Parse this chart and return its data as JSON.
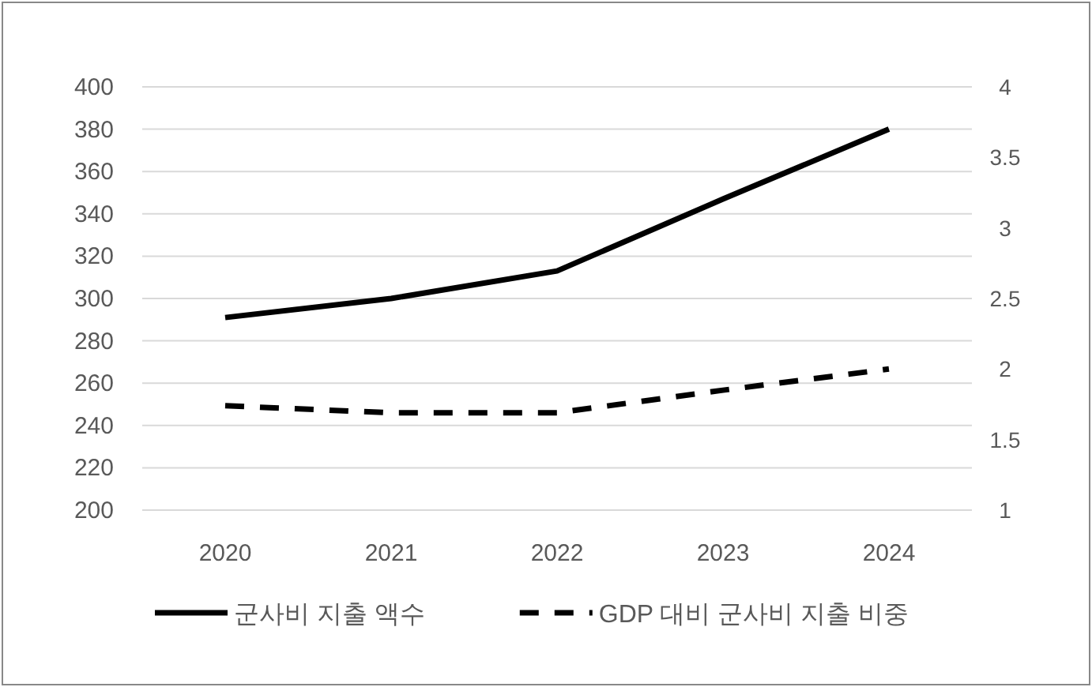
{
  "chart_data": {
    "type": "line",
    "categories": [
      "2020",
      "2021",
      "2022",
      "2023",
      "2024"
    ],
    "series": [
      {
        "name": "군사비 지출 액수",
        "color": "#000000",
        "values": [
          291,
          300,
          313,
          347,
          380
        ],
        "line_style": "solid"
      },
      {
        "name": "GDP 대비 군사비 지출 비중",
        "color": "#000000",
        "values": [
          1.74,
          1.69,
          1.69,
          1.85,
          2.0
        ],
        "axis": "y2",
        "line_style": "dashed"
      }
    ],
    "ylim": [
      200,
      400
    ],
    "yticks": [
      200,
      220,
      240,
      260,
      280,
      300,
      320,
      340,
      360,
      380,
      400
    ],
    "y2lim": [
      1,
      4
    ],
    "y2ticks": [
      1,
      1.5,
      2,
      2.5,
      3,
      3.5,
      4
    ],
    "grid": "y",
    "legend": "bottom",
    "marker": "none"
  }
}
